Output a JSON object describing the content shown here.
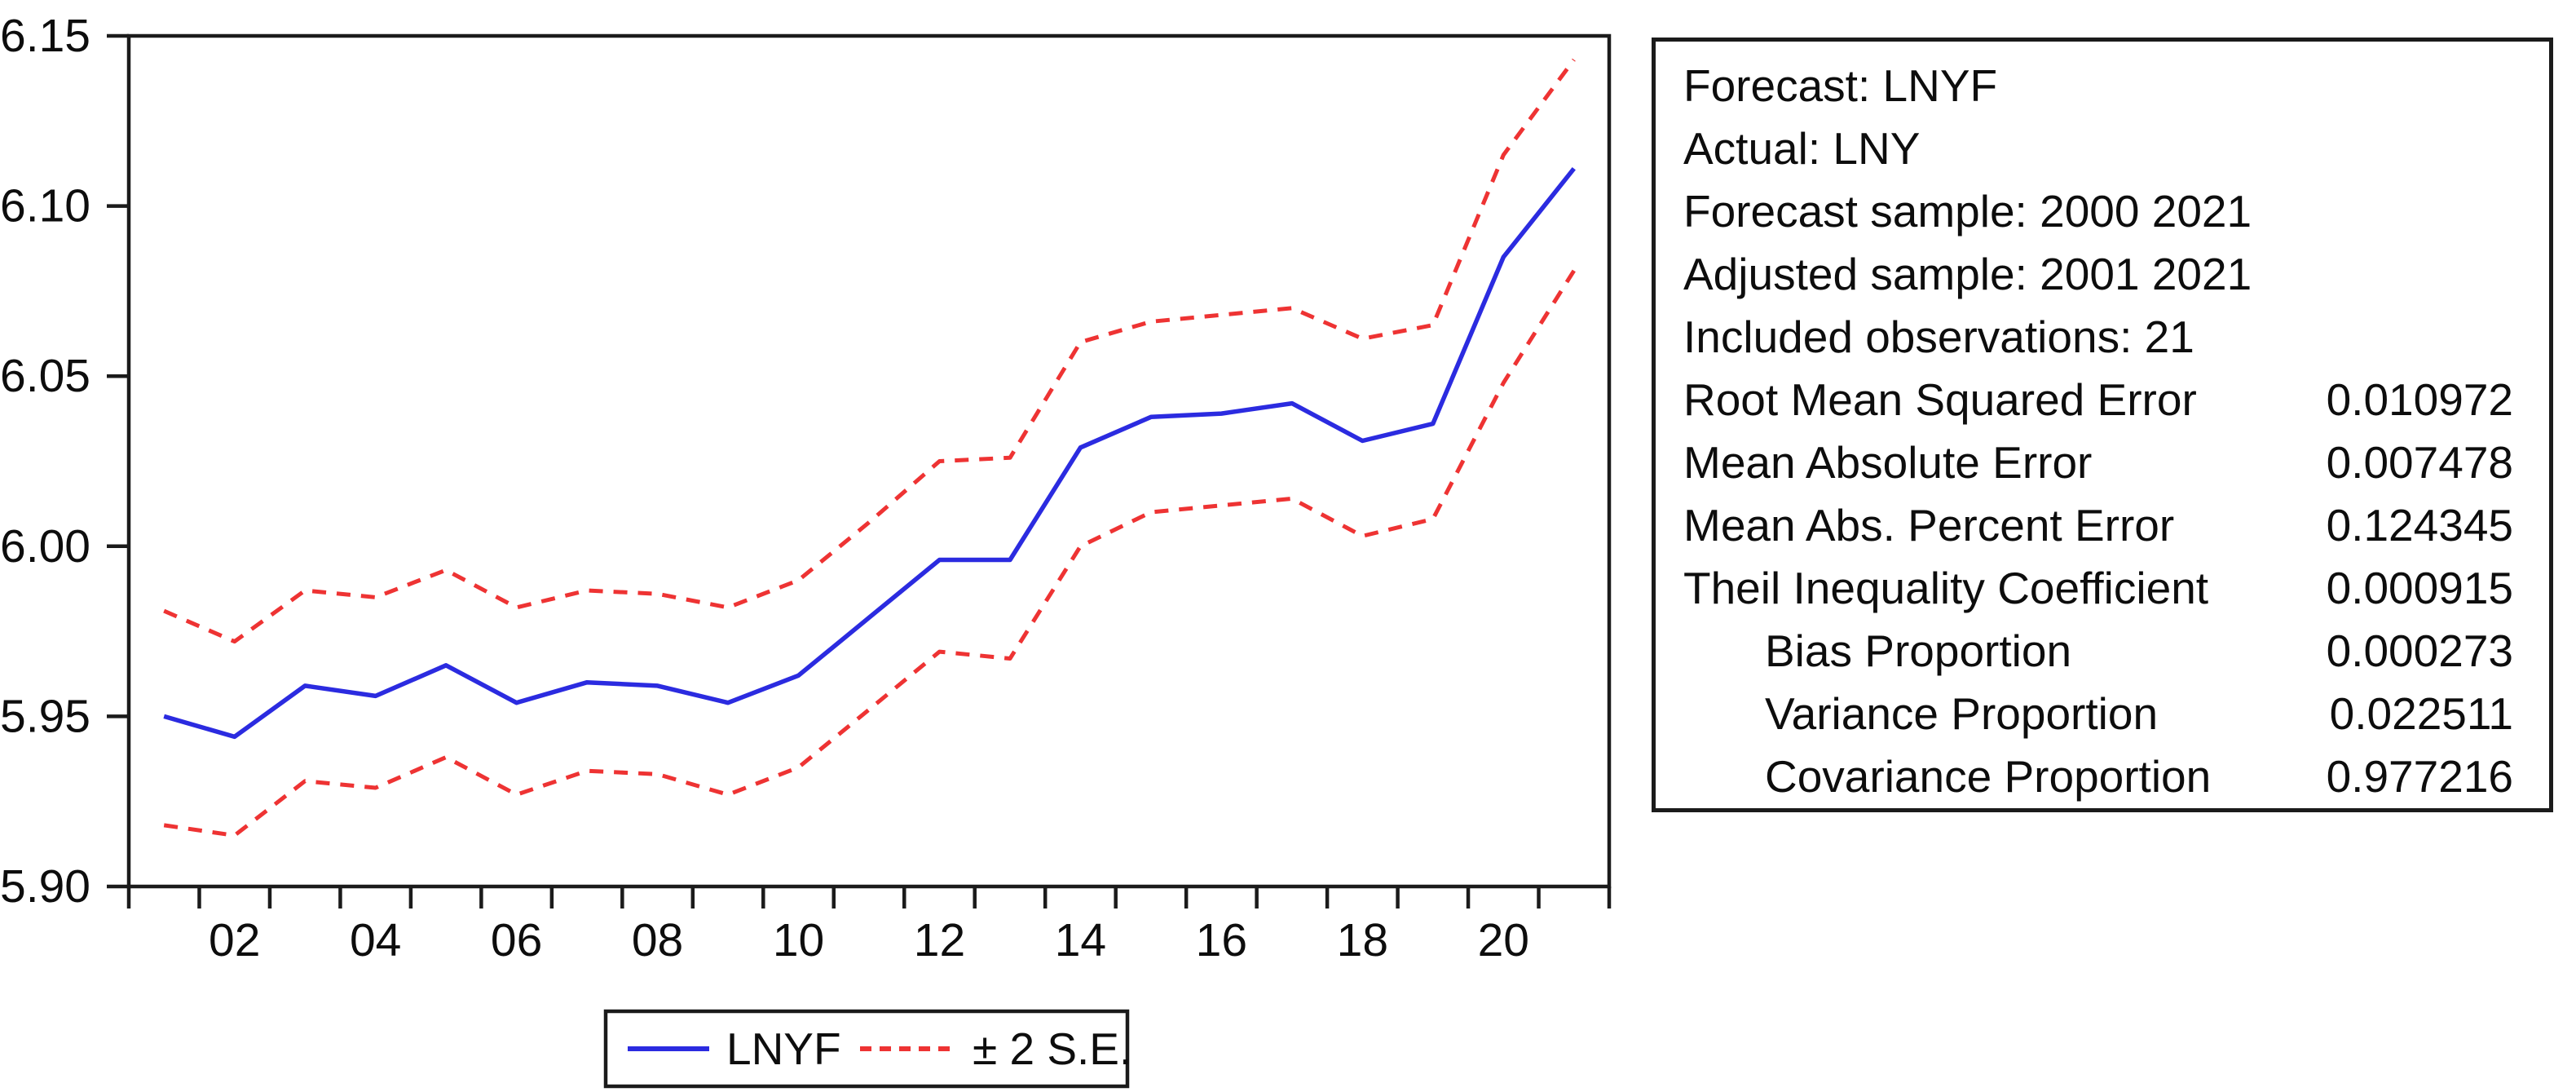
{
  "colors": {
    "forecast_line": "#2b2be0",
    "band_line": "#ee3333",
    "frame": "#1b1b1b",
    "text": "#0d0d0d",
    "background": "#ffffff"
  },
  "chart": {
    "y_tick_labels": [
      "6.15",
      "6.10",
      "6.05",
      "6.00",
      "5.95",
      "5.90"
    ],
    "x_tick_labels": [
      "02",
      "04",
      "06",
      "08",
      "10",
      "12",
      "14",
      "16",
      "18",
      "20"
    ],
    "legend": {
      "forecast_label": "LNYF",
      "band_label": "± 2 S.E."
    }
  },
  "chart_data": {
    "type": "line",
    "title": "",
    "xlabel": "",
    "ylabel": "",
    "x": [
      2001,
      2002,
      2003,
      2004,
      2005,
      2006,
      2007,
      2008,
      2009,
      2010,
      2011,
      2012,
      2013,
      2014,
      2015,
      2016,
      2017,
      2018,
      2019,
      2020,
      2021
    ],
    "ylim": [
      5.9,
      6.15
    ],
    "y_tick_step": 0.05,
    "grid": false,
    "legend_position": "bottom",
    "series": [
      {
        "name": "LNYF",
        "style": "solid",
        "color": "#2b2be0",
        "values": [
          5.95,
          5.944,
          5.959,
          5.956,
          5.965,
          5.954,
          5.96,
          5.959,
          5.954,
          5.962,
          5.979,
          5.996,
          5.996,
          6.029,
          6.038,
          6.039,
          6.042,
          6.031,
          6.036,
          6.085,
          6.111
        ]
      },
      {
        "name": "+2 S.E.",
        "style": "dashed",
        "color": "#ee3333",
        "values": [
          5.981,
          5.972,
          5.987,
          5.985,
          5.993,
          5.982,
          5.987,
          5.986,
          5.982,
          5.99,
          6.007,
          6.025,
          6.026,
          6.06,
          6.066,
          6.068,
          6.07,
          6.061,
          6.065,
          6.115,
          6.143
        ]
      },
      {
        "name": "-2 S.E.",
        "style": "dashed",
        "color": "#ee3333",
        "values": [
          5.918,
          5.915,
          5.931,
          5.929,
          5.938,
          5.927,
          5.934,
          5.933,
          5.927,
          5.935,
          5.952,
          5.969,
          5.967,
          6.0,
          6.01,
          6.012,
          6.014,
          6.003,
          6.008,
          6.048,
          6.081
        ]
      }
    ]
  },
  "stats_box": {
    "rows": [
      {
        "label": "Forecast: LNYF",
        "value": "",
        "indent": false
      },
      {
        "label": "Actual: LNY",
        "value": "",
        "indent": false
      },
      {
        "label": "Forecast sample: 2000 2021",
        "value": "",
        "indent": false
      },
      {
        "label": "Adjusted sample: 2001 2021",
        "value": "",
        "indent": false
      },
      {
        "label": "Included observations: 21",
        "value": "",
        "indent": false
      },
      {
        "label": "Root Mean Squared Error",
        "value": "0.010972",
        "indent": false
      },
      {
        "label": "Mean Absolute Error",
        "value": "0.007478",
        "indent": false
      },
      {
        "label": "Mean Abs. Percent Error",
        "value": "0.124345",
        "indent": false
      },
      {
        "label": "Theil Inequality Coefficient",
        "value": "0.000915",
        "indent": false
      },
      {
        "label": "Bias Proportion",
        "value": "0.000273",
        "indent": true
      },
      {
        "label": "Variance Proportion",
        "value": "0.022511",
        "indent": true
      },
      {
        "label": "Covariance Proportion",
        "value": "0.977216",
        "indent": true
      }
    ]
  }
}
